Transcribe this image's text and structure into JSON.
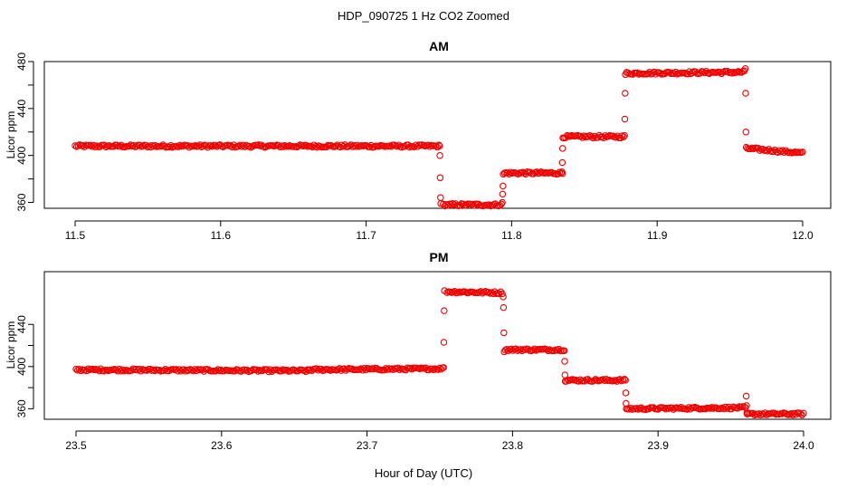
{
  "figure": {
    "title": "HDP_090725  1 Hz CO2 Zoomed",
    "xlabel": "Hour of Day (UTC)"
  },
  "chart_data": [
    {
      "type": "scatter",
      "title": "AM",
      "ylabel": "Licor ppm",
      "xlim": [
        11.5,
        12.0
      ],
      "ylim": [
        355,
        480
      ],
      "x_ticks": [
        "11.5",
        "11.6",
        "11.7",
        "11.8",
        "11.9",
        "12.0"
      ],
      "y_ticks": [
        "360",
        "400",
        "440",
        "480"
      ],
      "grid": false,
      "marker_color": "#ee0000",
      "segments": [
        {
          "x": [
            11.5,
            11.75
          ],
          "y": [
            408,
            408
          ]
        },
        {
          "x": [
            11.753,
            11.793
          ],
          "y": [
            358,
            358
          ]
        },
        {
          "x": [
            11.795,
            11.835
          ],
          "y": [
            385,
            385
          ]
        },
        {
          "x": [
            11.836,
            11.877
          ],
          "y": [
            416,
            416
          ]
        },
        {
          "x": [
            11.879,
            11.96
          ],
          "y": [
            470,
            471
          ]
        },
        {
          "x": [
            11.962,
            12.0
          ],
          "y": [
            406,
            402
          ]
        }
      ],
      "transitions": [
        {
          "x": 11.751,
          "y": [
            408,
            400,
            381,
            364,
            359
          ]
        },
        {
          "x": 11.794,
          "y": [
            360,
            367,
            374,
            384
          ]
        },
        {
          "x": 11.835,
          "y": [
            386,
            394,
            406,
            415
          ]
        },
        {
          "x": 11.878,
          "y": [
            417,
            431,
            453,
            469
          ]
        },
        {
          "x": 11.961,
          "y": [
            474,
            453,
            420,
            407
          ]
        }
      ]
    },
    {
      "type": "scatter",
      "title": "PM",
      "ylabel": "Licor ppm",
      "xlim": [
        23.5,
        24.0
      ],
      "ylim": [
        350,
        490
      ],
      "x_ticks": [
        "23.5",
        "23.6",
        "23.7",
        "23.8",
        "23.9",
        "24.0"
      ],
      "y_ticks": [
        "360",
        "400",
        "440"
      ],
      "grid": false,
      "marker_color": "#ee0000",
      "segments": [
        {
          "x": [
            23.5,
            23.66
          ],
          "y": [
            397,
            396
          ]
        },
        {
          "x": [
            23.66,
            23.752
          ],
          "y": [
            397,
            398
          ]
        },
        {
          "x": [
            23.755,
            23.793
          ],
          "y": [
            471,
            470
          ]
        },
        {
          "x": [
            23.795,
            23.835
          ],
          "y": [
            416,
            416
          ]
        },
        {
          "x": [
            23.837,
            23.877
          ],
          "y": [
            387,
            387
          ]
        },
        {
          "x": [
            23.879,
            23.96
          ],
          "y": [
            360,
            361
          ]
        },
        {
          "x": [
            23.962,
            24.0
          ],
          "y": [
            355,
            355
          ]
        }
      ],
      "transitions": [
        {
          "x": 23.753,
          "y": [
            399,
            423,
            453,
            472
          ]
        },
        {
          "x": 23.794,
          "y": [
            466,
            456,
            432,
            414
          ]
        },
        {
          "x": 23.836,
          "y": [
            415,
            405,
            392,
            386
          ]
        },
        {
          "x": 23.878,
          "y": [
            387,
            375,
            365,
            360
          ]
        },
        {
          "x": 23.961,
          "y": [
            372,
            363,
            356,
            355
          ]
        }
      ]
    }
  ]
}
